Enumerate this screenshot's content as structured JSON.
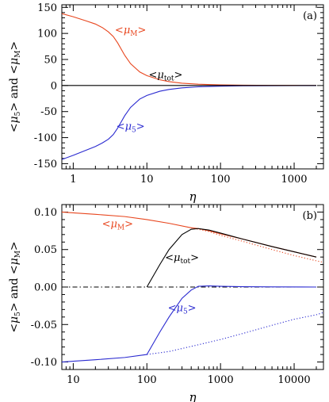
{
  "colors": {
    "mu_m": "#e8461e",
    "mu_5": "#2a2ad0",
    "mu_tot": "#000000"
  },
  "chart_data": [
    {
      "type": "line",
      "panel_label": "(a)",
      "xlabel": "η",
      "ylabel": {
        "part1_open": "<",
        "part1_sym": "μ",
        "part1_sub": "5",
        "part1_close": ">",
        "and": " and ",
        "part2_open": "<",
        "part2_sym": "μ",
        "part2_sub": "M",
        "part2_close": ">"
      },
      "x_scale": "log",
      "xlim": [
        0.7,
        2500
      ],
      "ylim": [
        -160,
        155
      ],
      "x_ticks": [
        1,
        10,
        100,
        1000
      ],
      "x_tick_labels": [
        "1",
        "10",
        "100",
        "1000"
      ],
      "y_ticks": [
        -150,
        -100,
        -50,
        0,
        50,
        100,
        150
      ],
      "y_tick_labels": [
        "-150",
        "-100",
        "-50",
        "0",
        "50",
        "100",
        "150"
      ],
      "series": [
        {
          "key": "mu_m",
          "style": "solid",
          "x": [
            0.7,
            1,
            1.5,
            2,
            2.5,
            3,
            3.5,
            4,
            5,
            6,
            8,
            10,
            15,
            20,
            30,
            50,
            100,
            200,
            500,
            1000,
            2000
          ],
          "y": [
            138,
            132,
            124,
            118,
            111,
            103,
            94,
            82,
            58,
            42,
            26,
            19,
            11,
            7.5,
            4.5,
            2.5,
            1.2,
            0.6,
            0.3,
            0.2,
            0.1
          ]
        },
        {
          "key": "mu_5",
          "style": "solid",
          "x": [
            0.7,
            1,
            1.5,
            2,
            2.5,
            3,
            3.5,
            4,
            5,
            6,
            8,
            10,
            15,
            20,
            30,
            50,
            100,
            200,
            500,
            1000,
            2000
          ],
          "y": [
            -142,
            -134,
            -124,
            -117,
            -110,
            -103,
            -94,
            -82,
            -58,
            -42,
            -26,
            -19,
            -11,
            -7.5,
            -4.5,
            -2.5,
            -1.2,
            -0.6,
            -0.3,
            -0.2,
            -0.1
          ]
        },
        {
          "key": "mu_tot",
          "style": "solid",
          "x": [
            0.7,
            2000
          ],
          "y": [
            0,
            0
          ]
        }
      ],
      "annotations": [
        {
          "key": "mu_m",
          "open": "<",
          "sym": "μ",
          "sub": "M",
          "close": ">",
          "x": 6,
          "y": 100
        },
        {
          "key": "mu_tot",
          "open": "<",
          "sym": "μ",
          "sub": "tot",
          "close": ">",
          "x": 18,
          "y": 14
        },
        {
          "key": "mu_5",
          "open": "<",
          "sym": "μ",
          "sub": "5",
          "close": ">",
          "x": 6,
          "y": -85
        }
      ]
    },
    {
      "type": "line",
      "panel_label": "(b)",
      "xlabel": "η",
      "ylabel": {
        "part1_open": "<",
        "part1_sym": "μ",
        "part1_sub": "5",
        "part1_close": ">",
        "and": " and ",
        "part2_open": "<",
        "part2_sym": "μ",
        "part2_sub": "M",
        "part2_close": ">"
      },
      "x_scale": "log",
      "xlim": [
        7,
        25000
      ],
      "ylim": [
        -0.11,
        0.11
      ],
      "x_ticks": [
        10,
        100,
        1000,
        10000
      ],
      "x_tick_labels": [
        "10",
        "100",
        "1000",
        "10000"
      ],
      "y_ticks": [
        -0.1,
        -0.05,
        0,
        0.05,
        0.1
      ],
      "y_tick_labels": [
        "-0.10",
        "-0.05",
        "0.00",
        "0.05",
        "0.10"
      ],
      "series": [
        {
          "key": "mu_m",
          "style": "solid",
          "x": [
            7,
            10,
            20,
            50,
            100,
            200,
            400,
            500,
            700,
            1000,
            2000,
            5000,
            10000,
            20000
          ],
          "y": [
            0.1,
            0.099,
            0.097,
            0.094,
            0.09,
            0.085,
            0.079,
            0.078,
            0.075,
            0.071,
            0.064,
            0.054,
            0.047,
            0.04
          ]
        },
        {
          "key": "mu_m",
          "style": "dotted",
          "x": [
            400,
            700,
            1000,
            2000,
            5000,
            10000,
            20000,
            25000
          ],
          "y": [
            0.079,
            0.074,
            0.069,
            0.061,
            0.05,
            0.042,
            0.035,
            0.033
          ]
        },
        {
          "key": "mu_tot",
          "style": "solid",
          "x": [
            100,
            150,
            200,
            300,
            400,
            500,
            700,
            1000,
            2000,
            5000,
            10000,
            20000
          ],
          "y": [
            0,
            0.03,
            0.05,
            0.07,
            0.077,
            0.078,
            0.076,
            0.072,
            0.064,
            0.054,
            0.047,
            0.04
          ]
        },
        {
          "key": "mu_tot",
          "style": "dashdot",
          "x": [
            7,
            25000
          ],
          "y": [
            0,
            0
          ]
        },
        {
          "key": "mu_5",
          "style": "solid",
          "x": [
            7,
            10,
            20,
            50,
            100,
            150,
            200,
            300,
            400,
            500,
            700,
            1000,
            2000,
            5000,
            20000
          ],
          "y": [
            -0.1,
            -0.099,
            -0.097,
            -0.094,
            -0.09,
            -0.06,
            -0.04,
            -0.015,
            -0.004,
            0.001,
            0.0015,
            0.001,
            0.0005,
            0.0002,
            0
          ]
        },
        {
          "key": "mu_5",
          "style": "dotted",
          "x": [
            100,
            200,
            500,
            1000,
            2000,
            5000,
            10000,
            20000,
            25000
          ],
          "y": [
            -0.09,
            -0.086,
            -0.077,
            -0.07,
            -0.062,
            -0.051,
            -0.043,
            -0.037,
            -0.034
          ]
        }
      ],
      "annotations": [
        {
          "key": "mu_m",
          "open": "<",
          "sym": "μ",
          "sub": "M",
          "close": ">",
          "x": 40,
          "y": 0.08
        },
        {
          "key": "mu_tot",
          "open": "<",
          "sym": "μ",
          "sub": "tot",
          "close": ">",
          "x": 300,
          "y": 0.035
        },
        {
          "key": "mu_5",
          "open": "<",
          "sym": "μ",
          "sub": "5",
          "close": ">",
          "x": 300,
          "y": -0.032
        }
      ]
    }
  ]
}
